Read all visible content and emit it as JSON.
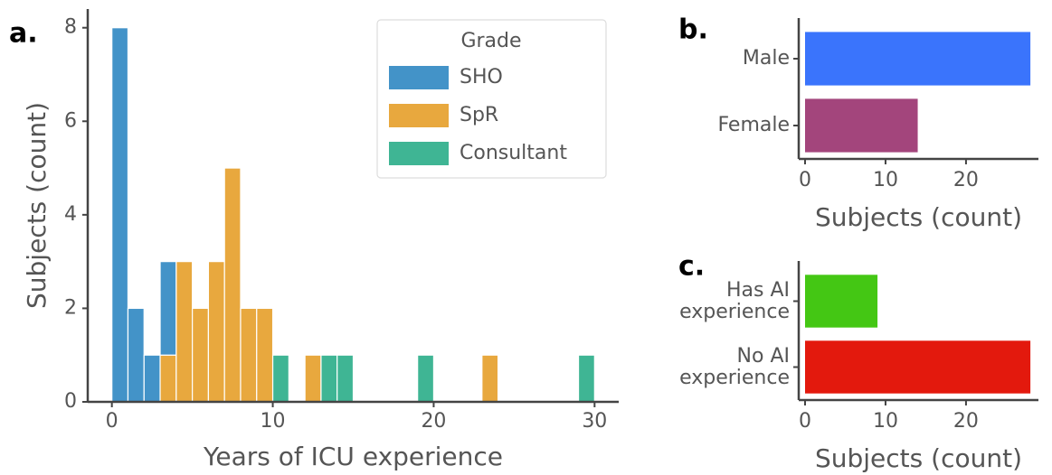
{
  "chart_data": [
    {
      "type": "histogram",
      "label": "a.",
      "xlabel": "Years of ICU experience",
      "ylabel": "Subjects (count)",
      "bins": [
        0,
        1,
        2,
        3,
        4,
        5,
        6,
        7,
        8,
        9,
        10,
        11,
        12,
        13,
        14,
        15,
        16,
        17,
        18,
        19,
        20,
        21,
        22,
        23,
        24,
        25,
        26,
        27,
        28,
        29,
        30
      ],
      "series": [
        {
          "name": "SHO",
          "color": "#4393c8",
          "values": [
            8,
            2,
            1,
            2,
            0,
            0,
            0,
            0,
            0,
            0,
            0,
            0,
            0,
            0,
            0,
            0,
            0,
            0,
            0,
            0,
            0,
            0,
            0,
            0,
            0,
            0,
            0,
            0,
            0,
            0
          ]
        },
        {
          "name": "SpR",
          "color": "#e8a83e",
          "values": [
            0,
            0,
            0,
            1,
            3,
            2,
            3,
            5,
            2,
            2,
            0,
            0,
            1,
            0,
            0,
            0,
            0,
            0,
            0,
            0,
            0,
            0,
            0,
            1,
            0,
            0,
            0,
            0,
            0,
            0
          ]
        },
        {
          "name": "Consultant",
          "color": "#3fb594",
          "values": [
            0,
            0,
            0,
            0,
            0,
            0,
            0,
            0,
            0,
            0,
            1,
            0,
            0,
            1,
            1,
            0,
            0,
            0,
            0,
            1,
            0,
            0,
            0,
            0,
            0,
            0,
            0,
            0,
            0,
            1
          ]
        }
      ],
      "xlim": [
        -1.5,
        31.5
      ],
      "ylim": [
        0,
        8.4
      ],
      "xticks": [
        0,
        10,
        20,
        30
      ],
      "yticks": [
        0,
        2,
        4,
        6,
        8
      ],
      "legend_title": "Grade",
      "legend": "upper right"
    },
    {
      "type": "barh",
      "label": "b.",
      "xlabel": "Subjects (count)",
      "categories": [
        "Male",
        "Female"
      ],
      "values": [
        28,
        14
      ],
      "colors": [
        "#3a74fc",
        "#a3457c"
      ],
      "xlim": [
        0,
        29
      ],
      "xticks": [
        0,
        10,
        20
      ]
    },
    {
      "type": "barh",
      "label": "c.",
      "xlabel": "Subjects (count)",
      "categories": [
        "Has AI\nexperience",
        "No AI\nexperience"
      ],
      "values": [
        9,
        28
      ],
      "colors": [
        "#44c714",
        "#e3190d"
      ],
      "xlim": [
        0,
        29
      ],
      "xticks": [
        0,
        10,
        20
      ]
    }
  ]
}
